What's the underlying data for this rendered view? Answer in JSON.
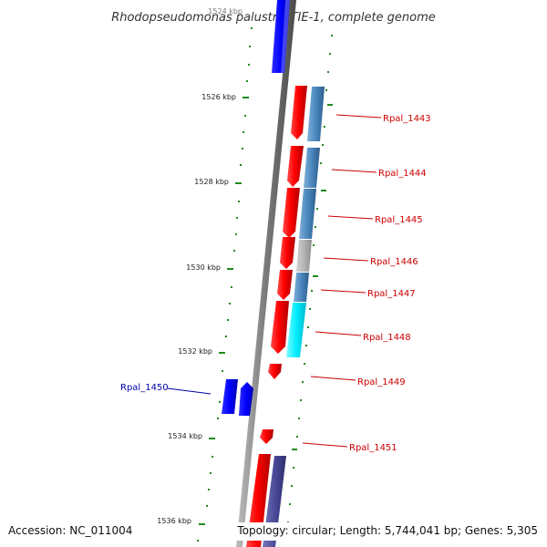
{
  "title": "Rhodopseudomonas palustris TIE-1, complete genome",
  "ruler": {
    "labels": [
      "1524 kbp",
      "1526 kbp",
      "1528 kbp",
      "1530 kbp",
      "1532 kbp",
      "1534 kbp",
      "1536 kbp"
    ]
  },
  "genes": [
    {
      "id": "Rpal_1443",
      "color": "#cc0000"
    },
    {
      "id": "Rpal_1444",
      "color": "#cc0000"
    },
    {
      "id": "Rpal_1445",
      "color": "#cc0000"
    },
    {
      "id": "Rpal_1446",
      "color": "#cc0000"
    },
    {
      "id": "Rpal_1447",
      "color": "#cc0000"
    },
    {
      "id": "Rpal_1448",
      "color": "#cc0000"
    },
    {
      "id": "Rpal_1449",
      "color": "#cc0000"
    },
    {
      "id": "Rpal_1450",
      "color": "#0000aa"
    },
    {
      "id": "Rpal_1451",
      "color": "#cc0000"
    }
  ],
  "colors": {
    "forward_strand": "#ff0000",
    "reverse_strand": "#0000ff",
    "ruler": "#1f8a1f",
    "backbone": "#888888"
  },
  "footer": {
    "accession": "Accession: NC_011004",
    "summary": "Topology: circular; Length: 5,744,041 bp; Genes: 5,305"
  }
}
